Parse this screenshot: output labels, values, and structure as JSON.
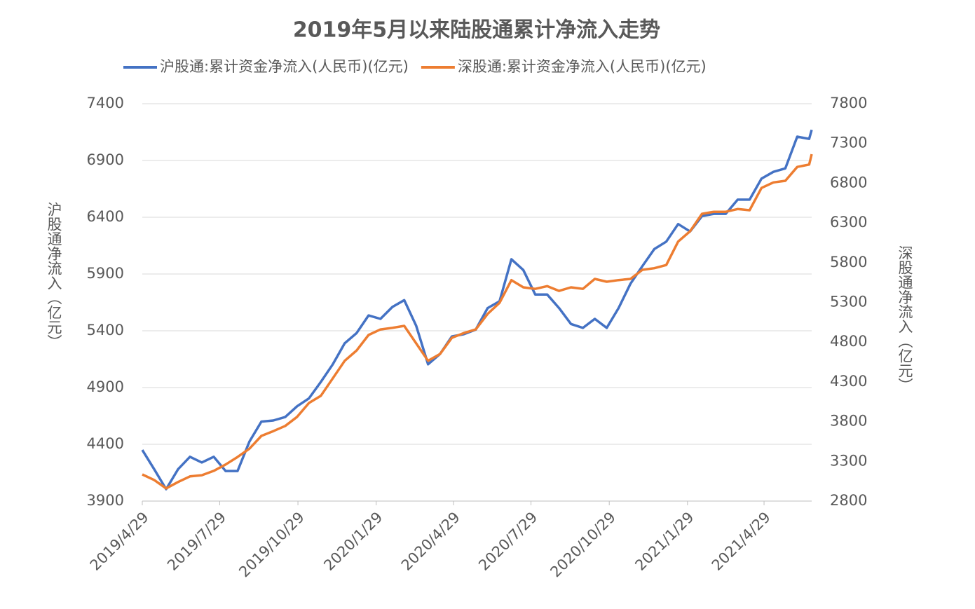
{
  "chart_data": {
    "type": "line",
    "title": "2019年5月以来陆股通累计净流入走势",
    "ylabel": "沪股通净流入（亿元）",
    "y2label": "深股通净流入（亿元）",
    "x": [
      "2019/4/29",
      "2019/5/13",
      "2019/5/27",
      "2019/6/10",
      "2019/6/24",
      "2019/7/8",
      "2019/7/22",
      "2019/8/5",
      "2019/8/19",
      "2019/9/2",
      "2019/9/16",
      "2019/9/30",
      "2019/10/14",
      "2019/10/28",
      "2019/11/11",
      "2019/11/25",
      "2019/12/9",
      "2019/12/23",
      "2020/1/6",
      "2020/1/20",
      "2020/2/3",
      "2020/2/17",
      "2020/3/2",
      "2020/3/16",
      "2020/3/30",
      "2020/4/13",
      "2020/4/27",
      "2020/5/11",
      "2020/5/25",
      "2020/6/8",
      "2020/6/22",
      "2020/7/6",
      "2020/7/20",
      "2020/8/3",
      "2020/8/17",
      "2020/8/31",
      "2020/9/14",
      "2020/9/28",
      "2020/10/12",
      "2020/10/26",
      "2020/11/9",
      "2020/11/23",
      "2020/12/7",
      "2020/12/21",
      "2021/1/4",
      "2021/1/18",
      "2021/2/1",
      "2021/2/15",
      "2021/3/1",
      "2021/3/15",
      "2021/3/29",
      "2021/4/12",
      "2021/4/26",
      "2021/5/10",
      "2021/5/24",
      "2021/6/7",
      "2021/6/21",
      "2021/6/24"
    ],
    "series": [
      {
        "name": "沪股通:累计资金净流入(人民币)(亿元)",
        "color": "#4472c4",
        "axis": "y",
        "values": [
          4350,
          4180,
          4005,
          4180,
          4290,
          4240,
          4290,
          4165,
          4165,
          4425,
          4600,
          4610,
          4640,
          4735,
          4805,
          4950,
          5105,
          5290,
          5380,
          5535,
          5505,
          5610,
          5670,
          5445,
          5105,
          5195,
          5350,
          5370,
          5410,
          5600,
          5660,
          6030,
          5935,
          5720,
          5720,
          5600,
          5460,
          5425,
          5505,
          5425,
          5600,
          5815,
          5970,
          6120,
          6185,
          6340,
          6275,
          6410,
          6430,
          6430,
          6555,
          6555,
          6740,
          6800,
          6830,
          7110,
          7090,
          7170
        ]
      },
      {
        "name": "深股通:累计资金净流入(人民币)(亿元)",
        "color": "#ed7d31",
        "axis": "y2",
        "values": [
          3135,
          3065,
          2960,
          3040,
          3110,
          3125,
          3180,
          3260,
          3355,
          3460,
          3620,
          3680,
          3745,
          3860,
          4035,
          4125,
          4345,
          4565,
          4695,
          4890,
          4960,
          4980,
          5005,
          4785,
          4565,
          4650,
          4855,
          4915,
          4960,
          5155,
          5295,
          5580,
          5490,
          5470,
          5505,
          5445,
          5490,
          5470,
          5595,
          5560,
          5580,
          5595,
          5710,
          5730,
          5770,
          6065,
          6195,
          6415,
          6440,
          6440,
          6475,
          6460,
          6740,
          6810,
          6830,
          7005,
          7035,
          7165
        ]
      }
    ],
    "xlim": [
      "2019/4/29",
      "2021/6/24"
    ],
    "xticks": [
      "2019/4/29",
      "2019/7/29",
      "2019/10/29",
      "2020/1/29",
      "2020/4/29",
      "2020/7/29",
      "2020/10/29",
      "2021/1/29",
      "2021/4/29"
    ],
    "ylim": [
      3900,
      7400
    ],
    "yticks": [
      3900,
      4400,
      4900,
      5400,
      5900,
      6400,
      6900,
      7400
    ],
    "y2lim": [
      2800,
      7800
    ],
    "y2ticks": [
      2800,
      3300,
      3800,
      4300,
      4800,
      5300,
      5800,
      6300,
      6800,
      7300,
      7800
    ],
    "grid": true,
    "legend": "top"
  }
}
